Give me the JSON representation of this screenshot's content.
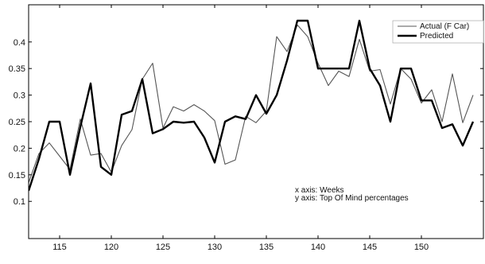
{
  "chart_data": {
    "type": "line",
    "title": "",
    "xlabel": "",
    "ylabel": "",
    "xlim": [
      112,
      156
    ],
    "ylim": [
      0.03,
      0.47
    ],
    "x_ticks": [
      115,
      120,
      125,
      130,
      135,
      140,
      145,
      150
    ],
    "y_ticks": [
      0.1,
      0.15,
      0.2,
      0.25,
      0.3,
      0.35,
      0.4
    ],
    "x_tick_labels": [
      "115",
      "120",
      "125",
      "130",
      "135",
      "140",
      "145",
      "150"
    ],
    "y_tick_labels": [
      "0.1",
      "0.15",
      "0.2",
      "0.25",
      "0.3",
      "0.35",
      "0.4"
    ],
    "grid": false,
    "legend_position": "top-right",
    "series": [
      {
        "name": "Actual (F Car)",
        "color": "#555555",
        "x": [
          112,
          113,
          114,
          115,
          116,
          117,
          118,
          119,
          120,
          121,
          122,
          123,
          124,
          125,
          126,
          127,
          128,
          129,
          130,
          131,
          132,
          133,
          134,
          135,
          136,
          137,
          138,
          139,
          140,
          141,
          142,
          143,
          144,
          145,
          146,
          147,
          148,
          149,
          150,
          151,
          152,
          153,
          154,
          155
        ],
        "y": [
          0.135,
          0.19,
          0.21,
          0.185,
          0.16,
          0.255,
          0.187,
          0.19,
          0.155,
          0.205,
          0.235,
          0.33,
          0.36,
          0.238,
          0.278,
          0.27,
          0.282,
          0.27,
          0.252,
          0.17,
          0.178,
          0.26,
          0.248,
          0.27,
          0.41,
          0.382,
          0.432,
          0.41,
          0.36,
          0.318,
          0.345,
          0.335,
          0.405,
          0.345,
          0.348,
          0.283,
          0.35,
          0.33,
          0.285,
          0.31,
          0.25,
          0.34,
          0.248,
          0.3
        ]
      },
      {
        "name": "Predicted",
        "color": "#000000",
        "x": [
          112,
          113,
          114,
          115,
          116,
          117,
          118,
          119,
          120,
          121,
          122,
          123,
          124,
          125,
          126,
          127,
          128,
          129,
          130,
          131,
          132,
          133,
          134,
          135,
          136,
          137,
          138,
          139,
          140,
          141,
          142,
          143,
          144,
          145,
          146,
          147,
          148,
          149,
          150,
          151,
          152,
          153,
          154,
          155
        ],
        "y": [
          0.12,
          0.18,
          0.25,
          0.25,
          0.15,
          0.24,
          0.322,
          0.165,
          0.15,
          0.263,
          0.27,
          0.33,
          0.228,
          0.236,
          0.25,
          0.248,
          0.25,
          0.22,
          0.173,
          0.25,
          0.26,
          0.255,
          0.3,
          0.265,
          0.3,
          0.365,
          0.44,
          0.44,
          0.35,
          0.35,
          0.35,
          0.35,
          0.44,
          0.35,
          0.318,
          0.25,
          0.35,
          0.35,
          0.29,
          0.29,
          0.238,
          0.245,
          0.205,
          0.25
        ]
      }
    ],
    "annotations": [
      "x axis: Weeks",
      "y axis: Top Of Mind percentages"
    ]
  }
}
